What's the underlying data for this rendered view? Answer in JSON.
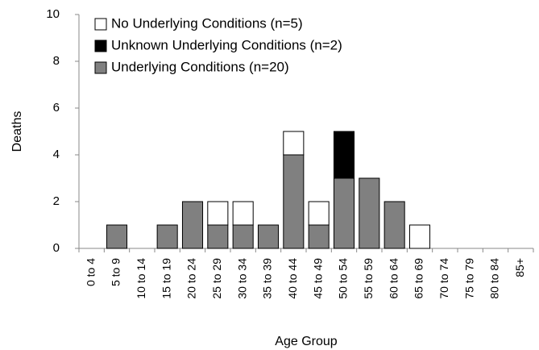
{
  "chart_data": {
    "type": "bar",
    "stacked": true,
    "x_label": "Age Group",
    "y_label": "Deaths",
    "categories": [
      "0 to 4",
      "5 to 9",
      "10 to 14",
      "15 to 19",
      "20 to 24",
      "25 to 29",
      "30 to 34",
      "35 to 39",
      "40 to 44",
      "45 to 49",
      "50 to 54",
      "55 to 59",
      "60 to 64",
      "65 to 69",
      "70 to 74",
      "75 to 79",
      "80 to 84",
      "85+"
    ],
    "series": [
      {
        "name": "Underlying Conditions (n=20)",
        "color": "#808080",
        "values": [
          0,
          1,
          0,
          1,
          2,
          1,
          1,
          1,
          4,
          1,
          3,
          3,
          2,
          0,
          0,
          0,
          0,
          0
        ]
      },
      {
        "name": "Unknown Underlying Conditions (n=2)",
        "color": "#000000",
        "values": [
          0,
          0,
          0,
          0,
          0,
          0,
          0,
          0,
          0,
          0,
          2,
          0,
          0,
          0,
          0,
          0,
          0,
          0
        ]
      },
      {
        "name": "No Underlying Conditions (n=5)",
        "color": "#ffffff",
        "values": [
          0,
          0,
          0,
          0,
          0,
          1,
          1,
          0,
          1,
          1,
          0,
          0,
          0,
          1,
          0,
          0,
          0,
          0
        ]
      }
    ],
    "ylim": [
      0,
      10
    ],
    "yticks": [
      0,
      2,
      4,
      6,
      8,
      10
    ],
    "grid": false,
    "legend": "top-left"
  }
}
